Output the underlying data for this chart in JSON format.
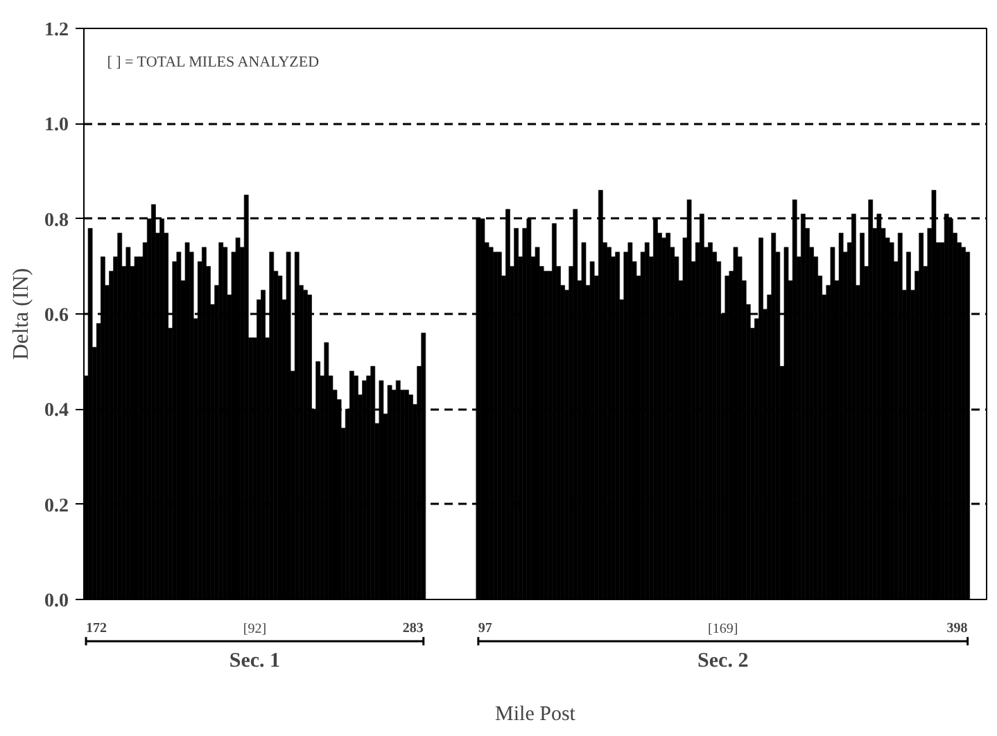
{
  "chart_data": {
    "type": "bar",
    "xlabel": "Mile Post",
    "ylabel": "Delta (IN)",
    "annotations": [
      "[  ] =  TOTAL MILES ANALYZED",
      "172",
      "[92]",
      "283",
      "Sec. 1",
      "97",
      "[169]",
      "398",
      "Sec. 2"
    ],
    "categories": [
      null,
      null,
      null,
      null,
      null,
      null,
      null,
      null,
      null,
      null,
      null,
      null,
      null,
      null,
      null,
      null,
      null,
      null,
      null,
      null,
      null,
      null,
      null,
      null,
      null,
      null,
      null,
      null,
      null,
      null,
      null,
      null,
      null,
      null,
      null,
      null,
      null,
      null,
      null,
      null,
      null,
      null,
      null,
      null,
      null,
      null,
      null,
      null,
      null,
      null,
      null,
      null,
      null,
      null,
      null,
      null,
      null,
      null,
      null,
      null,
      null,
      null,
      null,
      null,
      null,
      null,
      null,
      null,
      null,
      null,
      null,
      null,
      null,
      null,
      null,
      null,
      null,
      null,
      null,
      null,
      null,
      null,
      null,
      null,
      null,
      null,
      null,
      null,
      null,
      null,
      null,
      null,
      null,
      null,
      null,
      null,
      null,
      null,
      null,
      null,
      null,
      null,
      null,
      null,
      null,
      null,
      null,
      null,
      null,
      null,
      null,
      null,
      null,
      null,
      null,
      null,
      null,
      null,
      null,
      null,
      null,
      null,
      null,
      null,
      null,
      null,
      null,
      null,
      null,
      null,
      null,
      null,
      null,
      null,
      null,
      null,
      null,
      null,
      null,
      null,
      null,
      null,
      null,
      null,
      null,
      null,
      null,
      null,
      null,
      null,
      null,
      null,
      null,
      null,
      null,
      null,
      null,
      null,
      null,
      null,
      null,
      null,
      null,
      null,
      null,
      null,
      null,
      null,
      null,
      null,
      null,
      null,
      null,
      null,
      null,
      null,
      null,
      null,
      null,
      null,
      null,
      null,
      null,
      null,
      null,
      null,
      null,
      null,
      null,
      null,
      null,
      null,
      null,
      null,
      null,
      null,
      null,
      null,
      null,
      null,
      null,
      null,
      null,
      null,
      null,
      null,
      null,
      null,
      null,
      null,
      null,
      null,
      null,
      null
    ],
    "values": [
      0.47,
      0.78,
      0.53,
      0.58,
      0.72,
      0.66,
      0.69,
      0.72,
      0.77,
      0.7,
      0.74,
      0.7,
      0.72,
      0.72,
      0.75,
      0.8,
      0.83,
      0.77,
      0.8,
      0.77,
      0.57,
      0.71,
      0.73,
      0.67,
      0.75,
      0.73,
      0.59,
      0.71,
      0.74,
      0.7,
      0.62,
      0.66,
      0.75,
      0.74,
      0.64,
      0.73,
      0.76,
      0.74,
      0.85,
      0.55,
      0.55,
      0.63,
      0.65,
      0.55,
      0.73,
      0.69,
      0.68,
      0.63,
      0.73,
      0.48,
      0.73,
      0.66,
      0.65,
      0.64,
      0.4,
      0.5,
      0.47,
      0.54,
      0.47,
      0.44,
      0.42,
      0.36,
      0.4,
      0.48,
      0.47,
      0.43,
      0.46,
      0.47,
      0.49,
      0.37,
      0.46,
      0.39,
      0.45,
      0.44,
      0.46,
      0.44,
      0.44,
      0.43,
      0.41,
      0.49,
      0.56,
      null,
      null,
      null,
      null,
      null,
      null,
      null,
      null,
      null,
      null,
      null,
      null,
      0.8,
      0.8,
      0.75,
      0.74,
      0.73,
      0.73,
      0.68,
      0.82,
      0.7,
      0.78,
      0.72,
      0.78,
      0.8,
      0.72,
      0.74,
      0.7,
      0.69,
      0.69,
      0.79,
      0.7,
      0.66,
      0.65,
      0.7,
      0.82,
      0.67,
      0.75,
      0.66,
      0.71,
      0.68,
      0.86,
      0.75,
      0.74,
      0.72,
      0.73,
      0.63,
      0.73,
      0.75,
      0.71,
      0.68,
      0.73,
      0.75,
      0.72,
      0.8,
      0.77,
      0.76,
      0.77,
      0.74,
      0.72,
      0.67,
      0.76,
      0.84,
      0.71,
      0.75,
      0.81,
      0.74,
      0.75,
      0.73,
      0.71,
      0.6,
      0.68,
      0.69,
      0.74,
      0.72,
      0.67,
      0.62,
      0.57,
      0.59,
      0.76,
      0.61,
      0.64,
      0.77,
      0.73,
      0.49,
      0.74,
      0.67,
      0.84,
      0.72,
      0.81,
      0.78,
      0.74,
      0.72,
      0.68,
      0.64,
      0.66,
      0.74,
      0.67,
      0.77,
      0.73,
      0.75,
      0.81,
      0.66,
      0.77,
      0.7,
      0.84,
      0.78,
      0.81,
      0.78,
      0.76,
      0.75,
      0.71,
      0.77,
      0.65,
      0.73,
      0.65,
      0.69,
      0.77,
      0.7,
      0.78,
      0.86,
      0.75,
      0.75,
      0.81,
      0.8,
      0.77,
      0.75,
      0.74,
      0.73,
      null,
      null,
      null,
      null
    ],
    "color": "#000000",
    "ylim": [
      0,
      1.2
    ],
    "yticks": [
      {
        "value": 0,
        "label": "0.0"
      },
      0.2,
      0.4,
      0.6,
      0.8,
      {
        "value": 1,
        "label": "1.0"
      },
      1.2
    ],
    "grid": "y",
    "line_style": "dashed"
  }
}
